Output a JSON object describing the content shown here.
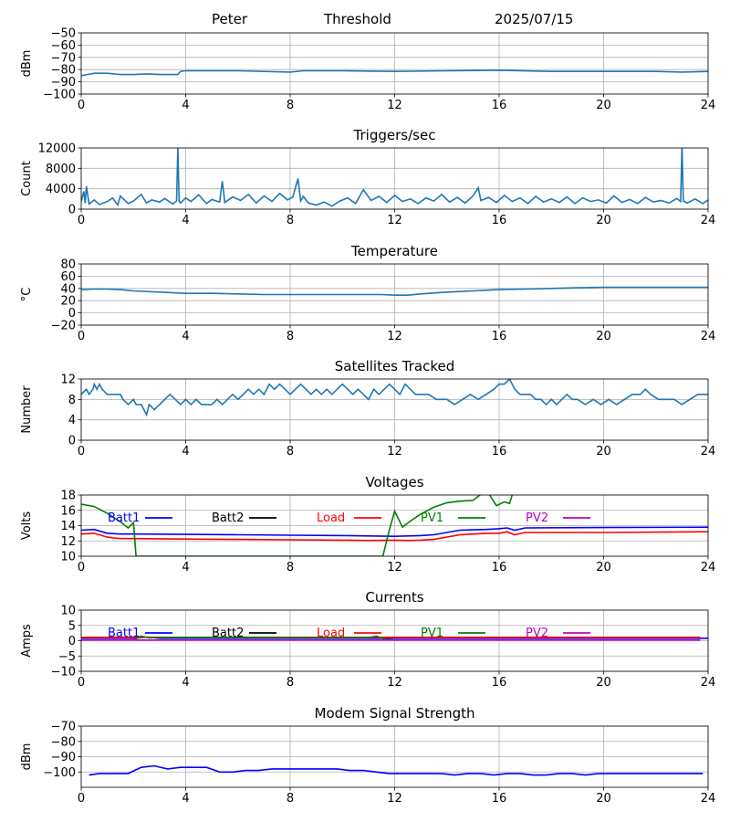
{
  "header": {
    "site": "Peter",
    "subtitle": "Threshold",
    "date": "2025/07/15"
  },
  "chart_data": [
    {
      "type": "line",
      "title": "",
      "xlabel": "",
      "ylabel": "dBm",
      "xlim": [
        0,
        24
      ],
      "ylim": [
        -100,
        -50
      ],
      "xticks": [
        0,
        4,
        8,
        12,
        16,
        20,
        24
      ],
      "yticks": [
        -100,
        -90,
        -80,
        -70,
        -60,
        -50
      ],
      "ytick_labels": [
        "−100",
        "−90",
        "−80",
        "−70",
        "−60",
        "−50"
      ],
      "grid": true,
      "series": [
        {
          "color": "#1f77b4",
          "x": [
            0,
            0.5,
            1,
            1.5,
            2,
            2.5,
            3,
            3.5,
            3.7,
            3.8,
            4,
            6,
            8,
            8.5,
            10,
            12,
            14,
            16,
            18,
            20,
            22,
            23,
            24
          ],
          "y": [
            -85,
            -83,
            -83,
            -84,
            -84,
            -83.5,
            -84,
            -84,
            -84,
            -81.5,
            -81,
            -81,
            -82,
            -81,
            -81,
            -81.5,
            -81,
            -80.5,
            -81.5,
            -81.5,
            -81.5,
            -82,
            -81.5
          ]
        }
      ]
    },
    {
      "type": "line",
      "title": "Triggers/sec",
      "xlabel": "",
      "ylabel": "Count",
      "xlim": [
        0,
        24
      ],
      "ylim": [
        0,
        12000
      ],
      "xticks": [
        0,
        4,
        8,
        12,
        16,
        20,
        24
      ],
      "yticks": [
        0,
        4000,
        8000,
        12000
      ],
      "ytick_labels": [
        "0",
        "4000",
        "8000",
        "12000"
      ],
      "grid": true,
      "series": [
        {
          "color": "#1f77b4",
          "x": [
            0,
            0.1,
            0.15,
            0.2,
            0.3,
            0.5,
            0.7,
            1.0,
            1.2,
            1.4,
            1.5,
            1.8,
            2.0,
            2.3,
            2.5,
            2.7,
            3.0,
            3.2,
            3.5,
            3.65,
            3.7,
            3.75,
            3.8,
            4.0,
            4.2,
            4.5,
            4.8,
            5.0,
            5.3,
            5.4,
            5.5,
            5.8,
            6.1,
            6.4,
            6.7,
            7.0,
            7.3,
            7.6,
            7.9,
            8.1,
            8.3,
            8.4,
            8.5,
            8.7,
            9.0,
            9.3,
            9.6,
            9.9,
            10.2,
            10.5,
            10.8,
            11.1,
            11.4,
            11.7,
            12.0,
            12.3,
            12.6,
            12.9,
            13.2,
            13.5,
            13.8,
            14.1,
            14.4,
            14.7,
            15.0,
            15.2,
            15.3,
            15.6,
            15.9,
            16.2,
            16.5,
            16.8,
            17.1,
            17.4,
            17.7,
            18.0,
            18.3,
            18.6,
            18.9,
            19.2,
            19.5,
            19.8,
            20.1,
            20.4,
            20.7,
            21.0,
            21.3,
            21.6,
            21.9,
            22.2,
            22.5,
            22.8,
            22.95,
            23.0,
            23.05,
            23.2,
            23.5,
            23.8,
            24
          ],
          "y": [
            1500,
            3500,
            1200,
            4500,
            1000,
            1800,
            900,
            1500,
            2200,
            800,
            2600,
            1100,
            1600,
            2900,
            1200,
            1800,
            1400,
            2100,
            1000,
            1600,
            12000,
            1500,
            1200,
            2200,
            1500,
            2800,
            1100,
            1900,
            1400,
            5500,
            1300,
            2400,
            1700,
            2900,
            1200,
            2600,
            1500,
            3100,
            1800,
            2400,
            6000,
            1600,
            2500,
            1200,
            800,
            1400,
            600,
            1600,
            2200,
            1100,
            3800,
            1700,
            2500,
            1300,
            2700,
            1500,
            2000,
            1100,
            2200,
            1600,
            2900,
            1400,
            2300,
            1200,
            2600,
            4200,
            1700,
            2300,
            1300,
            2700,
            1500,
            2200,
            1100,
            2500,
            1400,
            2000,
            1300,
            2400,
            1100,
            2200,
            1500,
            1800,
            1200,
            2600,
            1300,
            1900,
            1100,
            2300,
            1400,
            1700,
            1200,
            2100,
            1500,
            12500,
            1600,
            1200,
            2000,
            1100,
            1800
          ]
        }
      ]
    },
    {
      "type": "line",
      "title": "Temperature",
      "xlabel": "",
      "ylabel": "°C",
      "xlim": [
        0,
        24
      ],
      "ylim": [
        -20,
        80
      ],
      "xticks": [
        0,
        4,
        8,
        12,
        16,
        20,
        24
      ],
      "yticks": [
        -20,
        0,
        20,
        40,
        60,
        80
      ],
      "ytick_labels": [
        "−20",
        "0",
        "20",
        "40",
        "60",
        "80"
      ],
      "grid": true,
      "series": [
        {
          "color": "#1f77b4",
          "x": [
            0,
            0.5,
            1,
            1.5,
            2,
            3,
            4,
            5,
            6,
            7,
            8,
            9,
            10,
            11,
            11.5,
            12,
            12.5,
            13,
            14,
            15,
            16,
            17,
            18,
            19,
            20,
            21,
            22,
            23,
            24
          ],
          "y": [
            38,
            39,
            39,
            38,
            36,
            34,
            32,
            32,
            31,
            30,
            30,
            30,
            30,
            30,
            30,
            29,
            29,
            31,
            34,
            36,
            38,
            39,
            40,
            41,
            42,
            42,
            42,
            42,
            42
          ]
        }
      ]
    },
    {
      "type": "line",
      "title": "Satellites Tracked",
      "xlabel": "",
      "ylabel": "Number",
      "xlim": [
        0,
        24
      ],
      "ylim": [
        0,
        12
      ],
      "xticks": [
        0,
        4,
        8,
        12,
        16,
        20,
        24
      ],
      "yticks": [
        0,
        4,
        8,
        12
      ],
      "ytick_labels": [
        "0",
        "4",
        "8",
        "12"
      ],
      "grid": true,
      "series": [
        {
          "color": "#1f77b4",
          "x": [
            0,
            0.2,
            0.3,
            0.45,
            0.5,
            0.6,
            0.7,
            0.8,
            1.0,
            1.3,
            1.5,
            1.6,
            1.8,
            2.0,
            2.1,
            2.2,
            2.3,
            2.4,
            2.5,
            2.6,
            2.8,
            3.0,
            3.2,
            3.4,
            3.6,
            3.8,
            4.0,
            4.2,
            4.4,
            4.6,
            5.0,
            5.2,
            5.4,
            5.6,
            5.8,
            6.0,
            6.2,
            6.4,
            6.6,
            6.8,
            7.0,
            7.2,
            7.4,
            7.6,
            7.8,
            8.0,
            8.2,
            8.4,
            8.6,
            8.8,
            9.0,
            9.2,
            9.4,
            9.6,
            9.8,
            10.0,
            10.2,
            10.4,
            10.6,
            10.8,
            11.0,
            11.2,
            11.4,
            11.6,
            11.8,
            12.0,
            12.2,
            12.4,
            12.6,
            12.8,
            13.0,
            13.3,
            13.6,
            14.0,
            14.3,
            14.6,
            14.9,
            15.2,
            15.5,
            15.8,
            16.0,
            16.2,
            16.4,
            16.6,
            16.8,
            17.0,
            17.2,
            17.4,
            17.6,
            17.8,
            18.0,
            18.2,
            18.4,
            18.6,
            18.8,
            19.0,
            19.3,
            19.6,
            19.9,
            20.2,
            20.5,
            20.8,
            21.1,
            21.4,
            21.6,
            21.8,
            22.1,
            22.4,
            22.7,
            23.0,
            23.3,
            23.6,
            24
          ],
          "y": [
            9,
            10,
            9,
            10,
            11,
            10,
            11,
            10,
            9,
            9,
            9,
            8,
            7,
            8,
            7,
            7,
            7,
            6,
            5,
            7,
            6,
            7,
            8,
            9,
            8,
            7,
            8,
            7,
            8,
            7,
            7,
            8,
            7,
            8,
            9,
            8,
            9,
            10,
            9,
            10,
            9,
            11,
            10,
            11,
            10,
            9,
            10,
            11,
            10,
            9,
            10,
            9,
            10,
            9,
            10,
            11,
            10,
            9,
            10,
            9,
            8,
            10,
            9,
            10,
            11,
            10,
            9,
            11,
            10,
            9,
            9,
            9,
            8,
            8,
            7,
            8,
            9,
            8,
            9,
            10,
            11,
            11,
            12,
            10,
            9,
            9,
            9,
            8,
            8,
            7,
            8,
            7,
            8,
            9,
            8,
            8,
            7,
            8,
            7,
            8,
            7,
            8,
            9,
            9,
            10,
            9,
            8,
            8,
            8,
            7,
            8,
            9,
            9
          ]
        }
      ]
    },
    {
      "type": "line",
      "title": "Voltages",
      "xlabel": "",
      "ylabel": "Volts",
      "xlim": [
        0,
        24
      ],
      "ylim": [
        10,
        18
      ],
      "xticks": [
        0,
        4,
        8,
        12,
        16,
        20,
        24
      ],
      "yticks": [
        10,
        12,
        14,
        16,
        18
      ],
      "ytick_labels": [
        "10",
        "12",
        "14",
        "16",
        "18"
      ],
      "grid": true,
      "legend": "top",
      "series": [
        {
          "name": "Batt1",
          "color": "#0000ff",
          "x": [
            0,
            0.5,
            1,
            1.5,
            2,
            4,
            6,
            8,
            10,
            11,
            12,
            12.5,
            13,
            13.5,
            14,
            14.5,
            15,
            15.5,
            16,
            16.3,
            16.6,
            17,
            20,
            24
          ],
          "y": [
            13.4,
            13.5,
            13.0,
            12.9,
            12.9,
            12.85,
            12.8,
            12.75,
            12.7,
            12.65,
            12.6,
            12.65,
            12.7,
            12.8,
            13.1,
            13.4,
            13.45,
            13.5,
            13.6,
            13.7,
            13.4,
            13.7,
            13.75,
            13.8
          ]
        },
        {
          "name": "Batt2",
          "color": "#000000",
          "x": [],
          "y": []
        },
        {
          "name": "Load",
          "color": "#ff0000",
          "x": [
            0,
            0.5,
            1,
            1.5,
            2,
            4,
            6,
            8,
            10,
            11,
            12,
            12.5,
            13,
            13.5,
            14,
            14.5,
            15,
            15.5,
            16,
            16.3,
            16.6,
            17,
            20,
            24
          ],
          "y": [
            12.9,
            13.0,
            12.5,
            12.3,
            12.3,
            12.25,
            12.2,
            12.15,
            12.1,
            12.05,
            12.1,
            12.05,
            12.1,
            12.2,
            12.5,
            12.8,
            12.9,
            13.0,
            13.0,
            13.2,
            12.8,
            13.1,
            13.1,
            13.2
          ]
        },
        {
          "name": "PV1",
          "color": "#008000",
          "x": [
            0,
            0.5,
            1.0,
            1.5,
            1.8,
            2.0,
            2.1,
            11.55,
            11.8,
            12.0,
            12.3,
            12.6,
            13.0,
            13.5,
            14.0,
            14.5,
            15.0,
            15.3,
            15.6,
            15.9,
            16.2,
            16.4,
            16.5
          ],
          "y": [
            16.8,
            16.5,
            15.6,
            14.5,
            13.7,
            14.4,
            10.0,
            10.0,
            13.5,
            15.9,
            13.8,
            14.6,
            15.5,
            16.4,
            17.0,
            17.2,
            17.3,
            18.1,
            18.2,
            16.6,
            17.1,
            16.9,
            18.0
          ]
        },
        {
          "name": "PV2",
          "color": "#bf00bf",
          "x": [],
          "y": []
        }
      ]
    },
    {
      "type": "line",
      "title": "Currents",
      "xlabel": "",
      "ylabel": "Amps",
      "xlim": [
        0,
        24
      ],
      "ylim": [
        -10,
        10
      ],
      "xticks": [
        0,
        4,
        8,
        12,
        16,
        20,
        24
      ],
      "yticks": [
        -10,
        -5,
        0,
        5,
        10
      ],
      "ytick_labels": [
        "−10",
        "−5",
        "0",
        "5",
        "10"
      ],
      "grid": true,
      "legend": "top",
      "series": [
        {
          "name": "Batt1",
          "color": "#0000ff",
          "x": [
            0,
            2,
            2.5,
            3,
            6,
            9,
            12,
            15,
            18,
            21,
            24
          ],
          "y": [
            0.8,
            0.8,
            1.2,
            0.8,
            0.8,
            0.8,
            0.8,
            0.8,
            0.8,
            0.8,
            0.8
          ]
        },
        {
          "name": "Batt2",
          "color": "#000000",
          "x": [],
          "y": []
        },
        {
          "name": "Load",
          "color": "#ff0000",
          "x": [
            0,
            4,
            8,
            12,
            16,
            20,
            23.7
          ],
          "y": [
            1.1,
            1.1,
            1.1,
            1.1,
            1.1,
            1.1,
            1.1
          ]
        },
        {
          "name": "PV1",
          "color": "#008000",
          "x": [
            2.0,
            2.3,
            2.6,
            3.0,
            4.0,
            6.0,
            8.0,
            10.0,
            11.0,
            11.3,
            11.6,
            12.0
          ],
          "y": [
            0.2,
            1.5,
            0.9,
            1.1,
            1.1,
            1.1,
            1.0,
            1.0,
            1.0,
            1.5,
            0.5,
            0.2
          ]
        },
        {
          "name": "PV2",
          "color": "#bf00bf",
          "x": [
            0,
            23.7
          ],
          "y": [
            0.2,
            0.2
          ]
        }
      ]
    },
    {
      "type": "line",
      "title": "Modem Signal Strength",
      "xlabel": "",
      "ylabel": "dBm",
      "xlim": [
        0,
        24
      ],
      "ylim": [
        -110,
        -70
      ],
      "xticks": [
        0,
        4,
        8,
        12,
        16,
        20,
        24
      ],
      "yticks": [
        -100,
        -90,
        -80,
        -70
      ],
      "ytick_labels": [
        "−100",
        "−90",
        "−80",
        "−70"
      ],
      "grid": true,
      "series": [
        {
          "color": "#0000ff",
          "x": [
            0.3,
            0.7,
            1.2,
            1.8,
            2.3,
            2.8,
            3.3,
            3.8,
            4.3,
            4.8,
            5.3,
            5.8,
            6.3,
            6.8,
            7.3,
            7.8,
            8.3,
            8.8,
            9.3,
            9.8,
            10.3,
            10.8,
            11.3,
            11.8,
            12.3,
            12.8,
            13.3,
            13.8,
            14.3,
            14.8,
            15.3,
            15.8,
            16.3,
            16.8,
            17.3,
            17.8,
            18.3,
            18.8,
            19.3,
            19.8,
            20.3,
            20.8,
            21.3,
            21.8,
            22.3,
            22.8,
            23.3,
            23.8
          ],
          "y": [
            -102,
            -101,
            -101,
            -101,
            -97,
            -96,
            -98,
            -97,
            -97,
            -97,
            -100,
            -100,
            -99,
            -99,
            -98,
            -98,
            -98,
            -98,
            -98,
            -98,
            -99,
            -99,
            -100,
            -101,
            -101,
            -101,
            -101,
            -101,
            -102,
            -101,
            -101,
            -102,
            -101,
            -101,
            -102,
            -102,
            -101,
            -101,
            -102,
            -101,
            -101,
            -101,
            -101,
            -101,
            -101,
            -101,
            -101,
            -101
          ]
        }
      ]
    }
  ]
}
